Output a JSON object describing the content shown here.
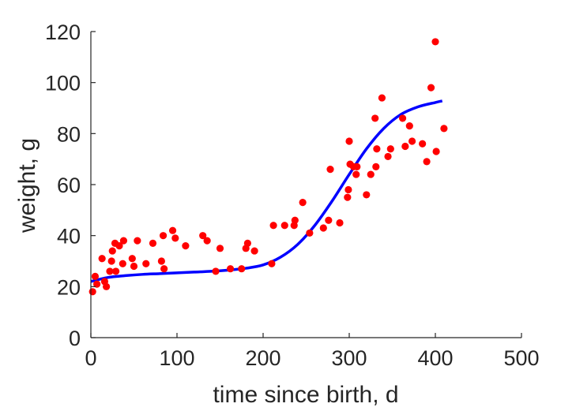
{
  "chart_data": {
    "type": "scatter",
    "title": "",
    "xlabel": "time since birth, d",
    "ylabel": "weight, g",
    "xlim": [
      0,
      500
    ],
    "ylim": [
      0,
      120
    ],
    "xticks": [
      0,
      100,
      200,
      300,
      400,
      500
    ],
    "yticks": [
      0,
      20,
      40,
      60,
      80,
      100,
      120
    ],
    "grid": false,
    "legend": "none",
    "colors": {
      "points": "#ff0000",
      "fit": "#0000ff",
      "axis": "#262626"
    },
    "series": [
      {
        "kind": "points",
        "x": [
          2,
          5,
          7,
          13,
          16,
          18,
          22,
          24,
          25,
          28,
          29,
          33,
          37,
          38,
          48,
          50,
          54,
          64,
          72,
          82,
          84,
          85,
          95,
          98,
          110,
          130,
          135,
          145,
          150,
          162,
          175,
          180,
          182,
          190,
          210,
          212,
          225,
          236,
          237,
          246,
          254,
          270,
          276,
          278,
          289,
          298,
          299,
          300,
          301,
          305,
          308,
          309,
          320,
          325,
          330,
          331,
          332,
          338,
          345,
          348,
          362,
          365,
          370,
          373,
          385,
          390,
          395,
          400,
          401,
          410
        ],
        "y": [
          18,
          24,
          21,
          31,
          22,
          20,
          26,
          30,
          34,
          37,
          26,
          36,
          29,
          38,
          31,
          28,
          38,
          29,
          37,
          30,
          40,
          27,
          42,
          39,
          36,
          40,
          38,
          26,
          35,
          27,
          27,
          35,
          37,
          34,
          29,
          44,
          44,
          44,
          46,
          53,
          41,
          43,
          46,
          66,
          45,
          55,
          58,
          77,
          68,
          67,
          64,
          67,
          56,
          64,
          86,
          67,
          74,
          94,
          71,
          74,
          86,
          75,
          83,
          77,
          76,
          69,
          98,
          116,
          73,
          82
        ]
      },
      {
        "kind": "fit",
        "x": [
          0,
          20,
          40,
          60,
          80,
          100,
          120,
          140,
          160,
          180,
          200,
          220,
          240,
          260,
          280,
          300,
          320,
          340,
          360,
          380,
          400,
          408
        ],
        "y": [
          22,
          23.6,
          24.3,
          24.8,
          25.1,
          25.4,
          25.7,
          26,
          26.5,
          27.2,
          28.5,
          31.5,
          36.5,
          44,
          53.5,
          64,
          74,
          82,
          87.5,
          90.5,
          92.2,
          92.8
        ]
      }
    ]
  }
}
